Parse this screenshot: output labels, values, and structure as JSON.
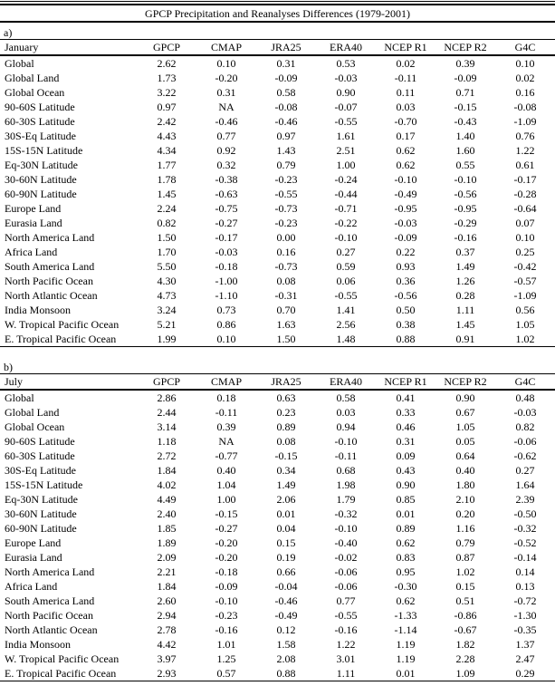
{
  "title": "GPCP Precipitation and Reanalyses Differences (1979-2001)",
  "columns": [
    "GPCP",
    "CMAP",
    "JRA25",
    "ERA40",
    "NCEP R1",
    "NCEP R2",
    "G4C"
  ],
  "panels": [
    {
      "label": "a)",
      "month": "January",
      "rows": [
        {
          "name": "Global",
          "values": [
            "2.62",
            "0.10",
            "0.31",
            "0.53",
            "0.02",
            "0.39",
            "0.10"
          ]
        },
        {
          "name": "Global Land",
          "values": [
            "1.73",
            "-0.20",
            "-0.09",
            "-0.03",
            "-0.11",
            "-0.09",
            "0.02"
          ]
        },
        {
          "name": "Global Ocean",
          "values": [
            "3.22",
            "0.31",
            "0.58",
            "0.90",
            "0.11",
            "0.71",
            "0.16"
          ]
        },
        {
          "name": "90-60S Latitude",
          "values": [
            "0.97",
            "NA",
            "-0.08",
            "-0.07",
            "0.03",
            "-0.15",
            "-0.08"
          ]
        },
        {
          "name": "60-30S Latitude",
          "values": [
            "2.42",
            "-0.46",
            "-0.46",
            "-0.55",
            "-0.70",
            "-0.43",
            "-1.09"
          ]
        },
        {
          "name": "30S-Eq Latitude",
          "values": [
            "4.43",
            "0.77",
            "0.97",
            "1.61",
            "0.17",
            "1.40",
            "0.76"
          ]
        },
        {
          "name": "15S-15N Latitude",
          "values": [
            "4.34",
            "0.92",
            "1.43",
            "2.51",
            "0.62",
            "1.60",
            "1.22"
          ]
        },
        {
          "name": "Eq-30N Latitude",
          "values": [
            "1.77",
            "0.32",
            "0.79",
            "1.00",
            "0.62",
            "0.55",
            "0.61"
          ]
        },
        {
          "name": "30-60N Latitude",
          "values": [
            "1.78",
            "-0.38",
            "-0.23",
            "-0.24",
            "-0.10",
            "-0.10",
            "-0.17"
          ]
        },
        {
          "name": "60-90N Latitude",
          "values": [
            "1.45",
            "-0.63",
            "-0.55",
            "-0.44",
            "-0.49",
            "-0.56",
            "-0.28"
          ]
        },
        {
          "name": "Europe Land",
          "values": [
            "2.24",
            "-0.75",
            "-0.73",
            "-0.71",
            "-0.95",
            "-0.95",
            "-0.64"
          ]
        },
        {
          "name": "Eurasia Land",
          "values": [
            "0.82",
            "-0.27",
            "-0.23",
            "-0.22",
            "-0.03",
            "-0.29",
            "0.07"
          ]
        },
        {
          "name": "North America Land",
          "values": [
            "1.50",
            "-0.17",
            "0.00",
            "-0.10",
            "-0.09",
            "-0.16",
            "0.10"
          ]
        },
        {
          "name": "Africa Land",
          "values": [
            "1.70",
            "-0.03",
            "0.16",
            "0.27",
            "0.22",
            "0.37",
            "0.25"
          ]
        },
        {
          "name": "South America Land",
          "values": [
            "5.50",
            "-0.18",
            "-0.73",
            "0.59",
            "0.93",
            "1.49",
            "-0.42"
          ]
        },
        {
          "name": "North Pacific Ocean",
          "values": [
            "4.30",
            "-1.00",
            "0.08",
            "0.06",
            "0.36",
            "1.26",
            "-0.57"
          ]
        },
        {
          "name": "North Atlantic Ocean",
          "values": [
            "4.73",
            "-1.10",
            "-0.31",
            "-0.55",
            "-0.56",
            "0.28",
            "-1.09"
          ]
        },
        {
          "name": "India Monsoon",
          "values": [
            "3.24",
            "0.73",
            "0.70",
            "1.41",
            "0.50",
            "1.11",
            "0.56"
          ]
        },
        {
          "name": "W. Tropical Pacific Ocean",
          "values": [
            "5.21",
            "0.86",
            "1.63",
            "2.56",
            "0.38",
            "1.45",
            "1.05"
          ]
        },
        {
          "name": "E. Tropical Pacific Ocean",
          "values": [
            "1.99",
            "0.10",
            "1.50",
            "1.48",
            "0.88",
            "0.91",
            "1.02"
          ]
        }
      ]
    },
    {
      "label": "b)",
      "month": "July",
      "rows": [
        {
          "name": "Global",
          "values": [
            "2.86",
            "0.18",
            "0.63",
            "0.58",
            "0.41",
            "0.90",
            "0.48"
          ]
        },
        {
          "name": "Global Land",
          "values": [
            "2.44",
            "-0.11",
            "0.23",
            "0.03",
            "0.33",
            "0.67",
            "-0.03"
          ]
        },
        {
          "name": "Global Ocean",
          "values": [
            "3.14",
            "0.39",
            "0.89",
            "0.94",
            "0.46",
            "1.05",
            "0.82"
          ]
        },
        {
          "name": "90-60S Latitude",
          "values": [
            "1.18",
            "NA",
            "0.08",
            "-0.10",
            "0.31",
            "0.05",
            "-0.06"
          ]
        },
        {
          "name": "60-30S Latitude",
          "values": [
            "2.72",
            "-0.77",
            "-0.15",
            "-0.11",
            "0.09",
            "0.64",
            "-0.62"
          ]
        },
        {
          "name": "30S-Eq Latitude",
          "values": [
            "1.84",
            "0.40",
            "0.34",
            "0.68",
            "0.43",
            "0.40",
            "0.27"
          ]
        },
        {
          "name": "15S-15N Latitude",
          "values": [
            "4.02",
            "1.04",
            "1.49",
            "1.98",
            "0.90",
            "1.80",
            "1.64"
          ]
        },
        {
          "name": "Eq-30N Latitude",
          "values": [
            "4.49",
            "1.00",
            "2.06",
            "1.79",
            "0.85",
            "2.10",
            "2.39"
          ]
        },
        {
          "name": "30-60N Latitude",
          "values": [
            "2.40",
            "-0.15",
            "0.01",
            "-0.32",
            "0.01",
            "0.20",
            "-0.50"
          ]
        },
        {
          "name": "60-90N Latitude",
          "values": [
            "1.85",
            "-0.27",
            "0.04",
            "-0.10",
            "0.89",
            "1.16",
            "-0.32"
          ]
        },
        {
          "name": "Europe Land",
          "values": [
            "1.89",
            "-0.20",
            "0.15",
            "-0.40",
            "0.62",
            "0.79",
            "-0.52"
          ]
        },
        {
          "name": "Eurasia Land",
          "values": [
            "2.09",
            "-0.20",
            "0.19",
            "-0.02",
            "0.83",
            "0.87",
            "-0.14"
          ]
        },
        {
          "name": "North America Land",
          "values": [
            "2.21",
            "-0.18",
            "0.66",
            "-0.06",
            "0.95",
            "1.02",
            "0.14"
          ]
        },
        {
          "name": "Africa Land",
          "values": [
            "1.84",
            "-0.09",
            "-0.04",
            "-0.06",
            "-0.30",
            "0.15",
            "0.13"
          ]
        },
        {
          "name": "South America Land",
          "values": [
            "2.60",
            "-0.10",
            "-0.46",
            "0.77",
            "0.62",
            "0.51",
            "-0.72"
          ]
        },
        {
          "name": "North Pacific Ocean",
          "values": [
            "2.94",
            "-0.23",
            "-0.49",
            "-0.55",
            "-1.33",
            "-0.86",
            "-1.30"
          ]
        },
        {
          "name": "North Atlantic Ocean",
          "values": [
            "2.78",
            "-0.16",
            "0.12",
            "-0.16",
            "-1.14",
            "-0.67",
            "-0.35"
          ]
        },
        {
          "name": "India Monsoon",
          "values": [
            "4.42",
            "1.01",
            "1.58",
            "1.22",
            "1.19",
            "1.82",
            "1.37"
          ]
        },
        {
          "name": "W. Tropical Pacific Ocean",
          "values": [
            "3.97",
            "1.25",
            "2.08",
            "3.01",
            "1.19",
            "2.28",
            "2.47"
          ]
        },
        {
          "name": "E. Tropical Pacific Ocean",
          "values": [
            "2.93",
            "0.57",
            "0.88",
            "1.11",
            "0.01",
            "1.09",
            "0.29"
          ]
        }
      ]
    }
  ]
}
